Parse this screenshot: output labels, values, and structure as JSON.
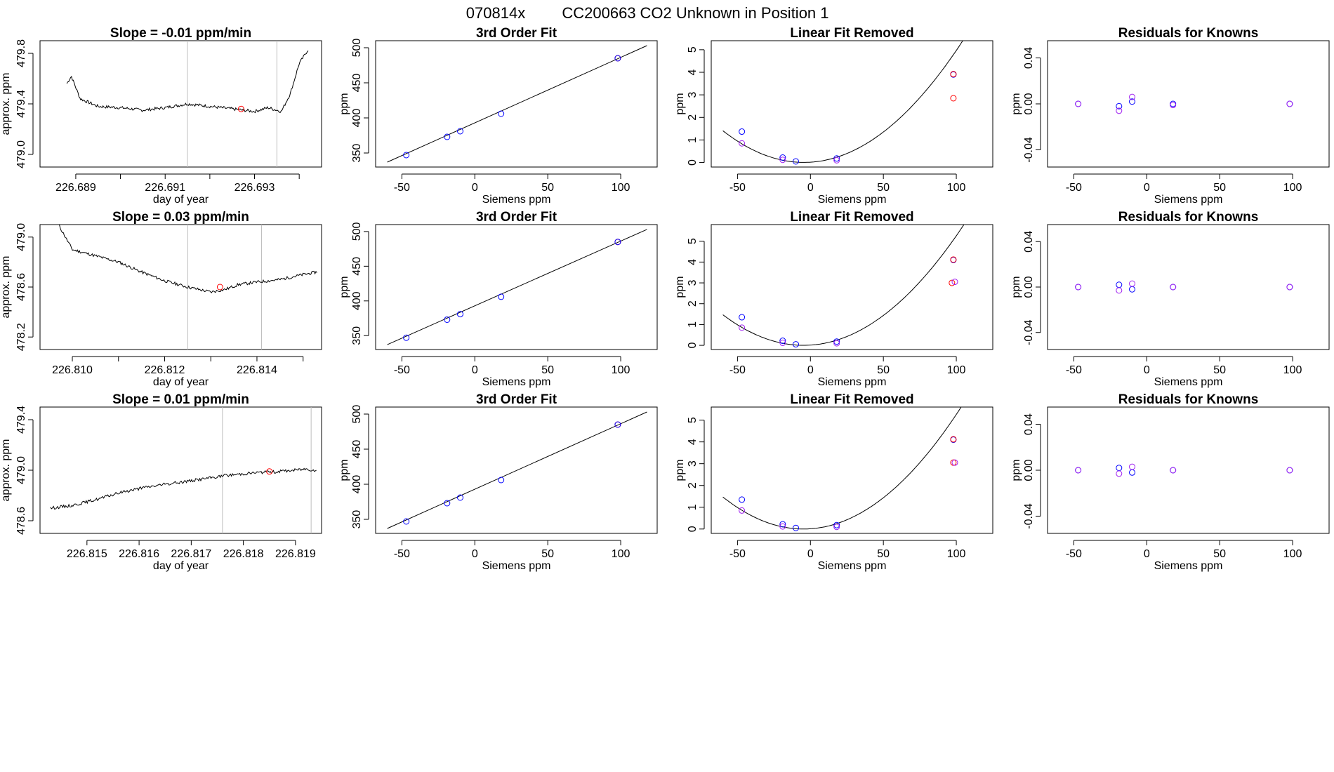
{
  "header": {
    "title_id": "070814x",
    "title_tank": "CC200663",
    "title_desc": "CO2 Unknown in Position  1"
  },
  "colors": {
    "line": "#000000",
    "grid": "#bebebe",
    "red": "#ff0000",
    "blue": "#0000ff",
    "violet": "#a020f0"
  },
  "chart_data": [
    {
      "type": "line",
      "row": 1,
      "panel": "timeseries",
      "title": "Slope =  -0.01  ppm/min",
      "xlabel": "day of year",
      "ylabel": "approx. ppm",
      "xlim": [
        226.6882,
        226.6945
      ],
      "ylim": [
        478.9,
        479.9
      ],
      "xticks": [
        226.689,
        226.69,
        226.691,
        226.692,
        226.693,
        226.694
      ],
      "xtick_labels": [
        "226.689",
        "",
        "226.691",
        "",
        "226.693",
        ""
      ],
      "yticks": [
        479.0,
        479.4,
        479.8
      ],
      "ytick_labels": [
        "479.0",
        "479.4",
        "479.8"
      ],
      "vlines": [
        226.6915,
        226.6935
      ],
      "marker": {
        "x": 226.6927,
        "y": 479.36,
        "color": "red"
      },
      "series": {
        "x": [
          226.6888,
          226.6889,
          226.6891,
          226.6895,
          226.69,
          226.6905,
          226.691,
          226.6915,
          226.692,
          226.6925,
          226.693,
          226.6933,
          226.6936,
          226.6938,
          226.694,
          226.6942
        ],
        "y": [
          479.56,
          479.62,
          479.44,
          479.38,
          479.37,
          479.35,
          479.37,
          479.4,
          479.38,
          479.36,
          479.34,
          479.37,
          479.34,
          479.48,
          479.72,
          479.83
        ]
      }
    },
    {
      "type": "scatter",
      "row": 1,
      "panel": "fit",
      "title": "3rd Order Fit",
      "xlabel": "Siemens ppm",
      "ylabel": "ppm",
      "xlim": [
        -68,
        125
      ],
      "ylim": [
        330,
        510
      ],
      "xticks": [
        -50,
        0,
        50,
        100
      ],
      "yticks": [
        350,
        400,
        450,
        500
      ],
      "xtick_labels": [
        "-50",
        "0",
        "50",
        "100"
      ],
      "ytick_labels": [
        "350",
        "400",
        "450",
        "500"
      ],
      "line": {
        "x": [
          -60,
          118
        ],
        "y": [
          337,
          503
        ]
      },
      "points": [
        {
          "x": -47,
          "y": 347,
          "color": "blue"
        },
        {
          "x": -19,
          "y": 373,
          "color": "blue"
        },
        {
          "x": -10,
          "y": 381,
          "color": "blue"
        },
        {
          "x": 18,
          "y": 406,
          "color": "blue"
        },
        {
          "x": 98,
          "y": 485,
          "color": "red"
        },
        {
          "x": 98,
          "y": 485,
          "color": "blue"
        }
      ]
    },
    {
      "type": "scatter",
      "row": 1,
      "panel": "linear_removed",
      "title": "Linear Fit Removed",
      "xlabel": "Siemens ppm",
      "ylabel": "ppm",
      "xlim": [
        -68,
        125
      ],
      "ylim": [
        -0.2,
        5.4
      ],
      "xticks": [
        -50,
        0,
        50,
        100
      ],
      "yticks": [
        0,
        1,
        2,
        3,
        4,
        5
      ],
      "xtick_labels": [
        "-50",
        "0",
        "50",
        "100"
      ],
      "ytick_labels": [
        "0",
        "1",
        "2",
        "3",
        "4",
        "5"
      ],
      "curve": {
        "a": 0.000455,
        "b": 0.00405,
        "c": 0.0135,
        "d": 0.0,
        "xmin": -60,
        "xmax": 118
      },
      "points": [
        {
          "x": -47,
          "y": 1.37,
          "color": "blue"
        },
        {
          "x": -47,
          "y": 0.85,
          "color": "violet"
        },
        {
          "x": -19,
          "y": 0.22,
          "color": "blue"
        },
        {
          "x": -19,
          "y": 0.12,
          "color": "violet"
        },
        {
          "x": -10,
          "y": 0.05,
          "color": "blue"
        },
        {
          "x": 18,
          "y": 0.18,
          "color": "blue"
        },
        {
          "x": 18,
          "y": 0.1,
          "color": "violet"
        },
        {
          "x": 98,
          "y": 3.9,
          "color": "blue"
        },
        {
          "x": 98,
          "y": 3.92,
          "color": "red"
        },
        {
          "x": 98,
          "y": 2.85,
          "color": "red"
        }
      ]
    },
    {
      "type": "scatter",
      "row": 1,
      "panel": "residuals",
      "title": "Residuals for Knowns",
      "xlabel": "Siemens ppm",
      "ylabel": "ppm",
      "xlim": [
        -68,
        125
      ],
      "ylim": [
        -0.055,
        0.055
      ],
      "xticks": [
        -50,
        0,
        50,
        100
      ],
      "yticks": [
        -0.04,
        0.0,
        0.04
      ],
      "xtick_labels": [
        "-50",
        "0",
        "50",
        "100"
      ],
      "ytick_labels": [
        "-0.04",
        "0.00",
        "0.04"
      ],
      "points": [
        {
          "x": -47,
          "y": 0.0,
          "color": "blue"
        },
        {
          "x": -47,
          "y": 0.0,
          "color": "violet"
        },
        {
          "x": -19,
          "y": -0.002,
          "color": "blue"
        },
        {
          "x": -19,
          "y": -0.006,
          "color": "violet"
        },
        {
          "x": -10,
          "y": 0.002,
          "color": "blue"
        },
        {
          "x": -10,
          "y": 0.006,
          "color": "violet"
        },
        {
          "x": 18,
          "y": 0.0,
          "color": "blue"
        },
        {
          "x": 18,
          "y": -0.001,
          "color": "violet"
        },
        {
          "x": 98,
          "y": 0.0,
          "color": "blue"
        },
        {
          "x": 98,
          "y": 0.0,
          "color": "violet"
        }
      ]
    },
    {
      "type": "line",
      "row": 2,
      "panel": "timeseries",
      "title": "Slope =  0.03  ppm/min",
      "xlabel": "day of year",
      "ylabel": "approx. ppm",
      "xlim": [
        226.8093,
        226.8154
      ],
      "ylim": [
        478.1,
        479.1
      ],
      "xticks": [
        226.81,
        226.811,
        226.812,
        226.813,
        226.814,
        226.815
      ],
      "xtick_labels": [
        "226.810",
        "",
        "226.812",
        "",
        "226.814",
        ""
      ],
      "yticks": [
        478.2,
        478.6,
        479.0
      ],
      "ytick_labels": [
        "478.2",
        "478.6",
        "479.0"
      ],
      "vlines": [
        226.8125,
        226.8141
      ],
      "marker": {
        "x": 226.8132,
        "y": 478.6,
        "color": "red"
      },
      "series": {
        "x": [
          226.8097,
          226.81,
          226.8105,
          226.811,
          226.8115,
          226.812,
          226.8125,
          226.813,
          226.8133,
          226.8136,
          226.814,
          226.8145,
          226.815,
          226.8153
        ],
        "y": [
          479.1,
          478.9,
          478.85,
          478.8,
          478.72,
          478.65,
          478.6,
          478.56,
          478.58,
          478.62,
          478.64,
          478.66,
          478.7,
          478.72
        ]
      }
    },
    {
      "type": "scatter",
      "row": 2,
      "panel": "fit",
      "title": "3rd Order Fit",
      "xlabel": "Siemens ppm",
      "ylabel": "ppm",
      "xlim": [
        -68,
        125
      ],
      "ylim": [
        330,
        510
      ],
      "xticks": [
        -50,
        0,
        50,
        100
      ],
      "yticks": [
        350,
        400,
        450,
        500
      ],
      "xtick_labels": [
        "-50",
        "0",
        "50",
        "100"
      ],
      "ytick_labels": [
        "350",
        "400",
        "450",
        "500"
      ],
      "line": {
        "x": [
          -60,
          118
        ],
        "y": [
          337,
          503
        ]
      },
      "points": [
        {
          "x": -47,
          "y": 347,
          "color": "blue"
        },
        {
          "x": -19,
          "y": 373,
          "color": "blue"
        },
        {
          "x": -10,
          "y": 381,
          "color": "blue"
        },
        {
          "x": 18,
          "y": 406,
          "color": "blue"
        },
        {
          "x": 98,
          "y": 485,
          "color": "red"
        },
        {
          "x": 98,
          "y": 485,
          "color": "blue"
        }
      ]
    },
    {
      "type": "scatter",
      "row": 2,
      "panel": "linear_removed",
      "title": "Linear Fit Removed",
      "xlabel": "Siemens ppm",
      "ylabel": "ppm",
      "xlim": [
        -68,
        125
      ],
      "ylim": [
        -0.2,
        5.8
      ],
      "xticks": [
        -50,
        0,
        50,
        100
      ],
      "yticks": [
        0,
        1,
        2,
        3,
        4,
        5
      ],
      "xtick_labels": [
        "-50",
        "0",
        "50",
        "100"
      ],
      "ytick_labels": [
        "0",
        "1",
        "2",
        "3",
        "4",
        "5"
      ],
      "curve": {
        "a": 0.00048,
        "b": 0.0045,
        "c": 0.012,
        "d": 0.0,
        "xmin": -60,
        "xmax": 118
      },
      "points": [
        {
          "x": -47,
          "y": 1.35,
          "color": "blue"
        },
        {
          "x": -47,
          "y": 0.85,
          "color": "violet"
        },
        {
          "x": -19,
          "y": 0.22,
          "color": "blue"
        },
        {
          "x": -19,
          "y": 0.12,
          "color": "violet"
        },
        {
          "x": -10,
          "y": 0.05,
          "color": "blue"
        },
        {
          "x": 18,
          "y": 0.18,
          "color": "blue"
        },
        {
          "x": 18,
          "y": 0.1,
          "color": "violet"
        },
        {
          "x": 98,
          "y": 4.1,
          "color": "blue"
        },
        {
          "x": 98,
          "y": 4.12,
          "color": "red"
        },
        {
          "x": 97,
          "y": 3.0,
          "color": "red"
        },
        {
          "x": 99,
          "y": 3.05,
          "color": "violet"
        }
      ]
    },
    {
      "type": "scatter",
      "row": 2,
      "panel": "residuals",
      "title": "Residuals for Knowns",
      "xlabel": "Siemens ppm",
      "ylabel": "ppm",
      "xlim": [
        -68,
        125
      ],
      "ylim": [
        -0.055,
        0.055
      ],
      "xticks": [
        -50,
        0,
        50,
        100
      ],
      "yticks": [
        -0.04,
        0.0,
        0.04
      ],
      "xtick_labels": [
        "-50",
        "0",
        "50",
        "100"
      ],
      "ytick_labels": [
        "-0.04",
        "0.00",
        "0.04"
      ],
      "points": [
        {
          "x": -47,
          "y": 0.0,
          "color": "blue"
        },
        {
          "x": -47,
          "y": 0.0,
          "color": "violet"
        },
        {
          "x": -19,
          "y": 0.002,
          "color": "blue"
        },
        {
          "x": -19,
          "y": -0.003,
          "color": "violet"
        },
        {
          "x": -10,
          "y": -0.002,
          "color": "blue"
        },
        {
          "x": -10,
          "y": 0.003,
          "color": "violet"
        },
        {
          "x": 18,
          "y": 0.0,
          "color": "blue"
        },
        {
          "x": 18,
          "y": 0.0,
          "color": "violet"
        },
        {
          "x": 98,
          "y": 0.0,
          "color": "blue"
        },
        {
          "x": 98,
          "y": 0.0,
          "color": "violet"
        }
      ]
    },
    {
      "type": "line",
      "row": 3,
      "panel": "timeseries",
      "title": "Slope =  0.01  ppm/min",
      "xlabel": "day of year",
      "ylabel": "approx. ppm",
      "xlim": [
        226.8141,
        226.8195
      ],
      "ylim": [
        478.5,
        479.5
      ],
      "xticks": [
        226.815,
        226.816,
        226.817,
        226.818,
        226.819
      ],
      "xtick_labels": [
        "226.815",
        "226.816",
        "226.817",
        "226.818",
        "226.819"
      ],
      "yticks": [
        478.6,
        479.0,
        479.4
      ],
      "ytick_labels": [
        "478.6",
        "479.0",
        "479.4"
      ],
      "vlines": [
        226.8176,
        226.8193
      ],
      "marker": {
        "x": 226.8185,
        "y": 478.99,
        "color": "red"
      },
      "series": {
        "x": [
          226.8143,
          226.8147,
          226.8152,
          226.8157,
          226.8162,
          226.8167,
          226.8172,
          226.8177,
          226.8182,
          226.8187,
          226.8192,
          226.8194
        ],
        "y": [
          478.7,
          478.72,
          478.77,
          478.83,
          478.87,
          478.9,
          478.93,
          478.96,
          478.98,
          478.99,
          479.01,
          479.0
        ]
      }
    },
    {
      "type": "scatter",
      "row": 3,
      "panel": "fit",
      "title": "3rd Order Fit",
      "xlabel": "Siemens ppm",
      "ylabel": "ppm",
      "xlim": [
        -68,
        125
      ],
      "ylim": [
        330,
        510
      ],
      "xticks": [
        -50,
        0,
        50,
        100
      ],
      "yticks": [
        350,
        400,
        450,
        500
      ],
      "xtick_labels": [
        "-50",
        "0",
        "50",
        "100"
      ],
      "ytick_labels": [
        "350",
        "400",
        "450",
        "500"
      ],
      "line": {
        "x": [
          -60,
          118
        ],
        "y": [
          337,
          503
        ]
      },
      "points": [
        {
          "x": -47,
          "y": 347,
          "color": "blue"
        },
        {
          "x": -19,
          "y": 373,
          "color": "blue"
        },
        {
          "x": -10,
          "y": 381,
          "color": "blue"
        },
        {
          "x": 18,
          "y": 406,
          "color": "blue"
        },
        {
          "x": 98,
          "y": 485,
          "color": "red"
        },
        {
          "x": 98,
          "y": 485,
          "color": "blue"
        }
      ]
    },
    {
      "type": "scatter",
      "row": 3,
      "panel": "linear_removed",
      "title": "Linear Fit Removed",
      "xlabel": "Siemens ppm",
      "ylabel": "ppm",
      "xlim": [
        -68,
        125
      ],
      "ylim": [
        -0.2,
        5.6
      ],
      "xticks": [
        -50,
        0,
        50,
        100
      ],
      "yticks": [
        0,
        1,
        2,
        3,
        4,
        5
      ],
      "xtick_labels": [
        "-50",
        "0",
        "50",
        "100"
      ],
      "ytick_labels": [
        "0",
        "1",
        "2",
        "3",
        "4",
        "5"
      ],
      "curve": {
        "a": 0.00048,
        "b": 0.0045,
        "c": 0.012,
        "d": 0.0,
        "xmin": -60,
        "xmax": 118
      },
      "points": [
        {
          "x": -47,
          "y": 1.35,
          "color": "blue"
        },
        {
          "x": -47,
          "y": 0.85,
          "color": "violet"
        },
        {
          "x": -19,
          "y": 0.22,
          "color": "blue"
        },
        {
          "x": -19,
          "y": 0.12,
          "color": "violet"
        },
        {
          "x": -10,
          "y": 0.05,
          "color": "blue"
        },
        {
          "x": 18,
          "y": 0.18,
          "color": "blue"
        },
        {
          "x": 18,
          "y": 0.1,
          "color": "violet"
        },
        {
          "x": 98,
          "y": 4.1,
          "color": "blue"
        },
        {
          "x": 98,
          "y": 4.12,
          "color": "red"
        },
        {
          "x": 98,
          "y": 3.05,
          "color": "red"
        },
        {
          "x": 99,
          "y": 3.05,
          "color": "violet"
        }
      ]
    },
    {
      "type": "scatter",
      "row": 3,
      "panel": "residuals",
      "title": "Residuals for Knowns",
      "xlabel": "Siemens ppm",
      "ylabel": "ppm",
      "xlim": [
        -68,
        125
      ],
      "ylim": [
        -0.055,
        0.055
      ],
      "xticks": [
        -50,
        0,
        50,
        100
      ],
      "yticks": [
        -0.04,
        0.0,
        0.04
      ],
      "xtick_labels": [
        "-50",
        "0",
        "50",
        "100"
      ],
      "ytick_labels": [
        "-0.04",
        "0.00",
        "0.04"
      ],
      "points": [
        {
          "x": -47,
          "y": 0.0,
          "color": "blue"
        },
        {
          "x": -47,
          "y": 0.0,
          "color": "violet"
        },
        {
          "x": -19,
          "y": 0.002,
          "color": "blue"
        },
        {
          "x": -19,
          "y": -0.003,
          "color": "violet"
        },
        {
          "x": -10,
          "y": -0.002,
          "color": "blue"
        },
        {
          "x": -10,
          "y": 0.003,
          "color": "violet"
        },
        {
          "x": 18,
          "y": 0.0,
          "color": "blue"
        },
        {
          "x": 18,
          "y": 0.0,
          "color": "violet"
        },
        {
          "x": 98,
          "y": 0.0,
          "color": "blue"
        },
        {
          "x": 98,
          "y": 0.0,
          "color": "violet"
        }
      ]
    }
  ]
}
